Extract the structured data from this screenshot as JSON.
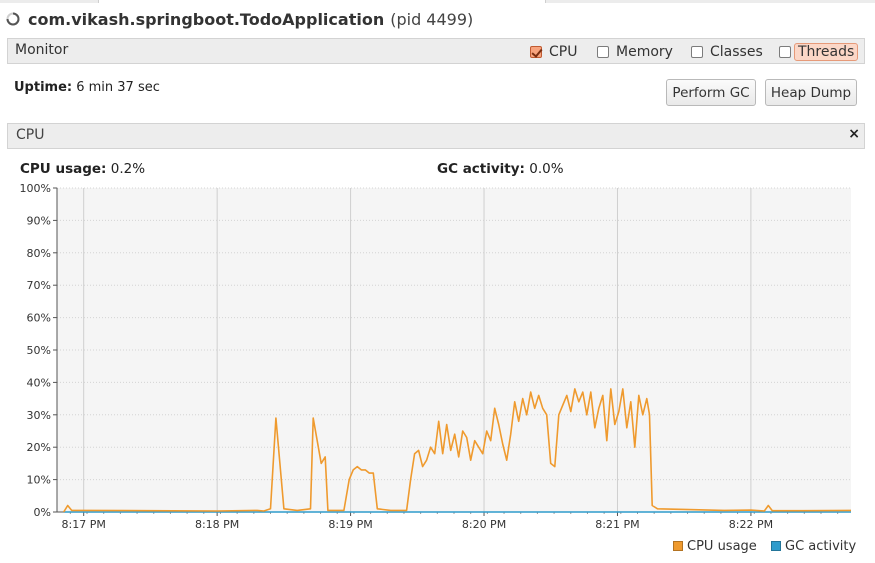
{
  "header": {
    "app_name": "com.vikash.springboot.TodoApplication",
    "pid_text": "(pid 4499)"
  },
  "monitor": {
    "label": "Monitor",
    "checkboxes": [
      {
        "label": "CPU",
        "checked": true
      },
      {
        "label": "Memory",
        "checked": false
      },
      {
        "label": "Classes",
        "checked": false
      },
      {
        "label": "Threads",
        "checked": false
      }
    ],
    "uptime_label": "Uptime:",
    "uptime_value": "6 min 37 sec",
    "perform_gc": "Perform GC",
    "heap_dump": "Heap Dump"
  },
  "cpu_panel": {
    "title": "CPU",
    "close": "×",
    "cpu_usage_label": "CPU usage:",
    "cpu_usage_value": "0.2%",
    "gc_activity_label": "GC activity:",
    "gc_activity_value": "0.0%"
  },
  "colors": {
    "cpu": "#ef9a2e",
    "gc": "#2f9ccc",
    "accent": "#f7a37d"
  },
  "chart_data": {
    "type": "line",
    "ylim": [
      0,
      100
    ],
    "yticks": [
      "0%",
      "10%",
      "20%",
      "30%",
      "40%",
      "50%",
      "60%",
      "70%",
      "80%",
      "90%",
      "100%"
    ],
    "xticks": [
      "8:17 PM",
      "8:18 PM",
      "8:19 PM",
      "8:20 PM",
      "8:21 PM",
      "8:22 PM"
    ],
    "x_unit": "minutes after 8:17 PM",
    "series": [
      {
        "name": "CPU usage",
        "color": "#ef9a2e",
        "points": [
          [
            -0.15,
            0
          ],
          [
            -0.12,
            2
          ],
          [
            -0.09,
            0.5
          ],
          [
            0,
            0.5
          ],
          [
            0.5,
            0.4
          ],
          [
            1,
            0.3
          ],
          [
            1.3,
            0.5
          ],
          [
            1.35,
            0.3
          ],
          [
            1.4,
            1
          ],
          [
            1.44,
            29
          ],
          [
            1.47,
            15
          ],
          [
            1.5,
            1
          ],
          [
            1.6,
            0.5
          ],
          [
            1.7,
            1
          ],
          [
            1.72,
            29
          ],
          [
            1.75,
            22
          ],
          [
            1.78,
            15
          ],
          [
            1.81,
            17
          ],
          [
            1.83,
            0.5
          ],
          [
            1.95,
            0.5
          ],
          [
            1.99,
            10
          ],
          [
            2.02,
            13
          ],
          [
            2.05,
            14
          ],
          [
            2.08,
            13
          ],
          [
            2.11,
            13
          ],
          [
            2.14,
            12
          ],
          [
            2.17,
            12
          ],
          [
            2.2,
            1
          ],
          [
            2.3,
            0.5
          ],
          [
            2.42,
            0.5
          ],
          [
            2.45,
            10
          ],
          [
            2.48,
            18
          ],
          [
            2.51,
            19
          ],
          [
            2.54,
            14
          ],
          [
            2.57,
            16
          ],
          [
            2.6,
            20
          ],
          [
            2.63,
            18
          ],
          [
            2.66,
            28
          ],
          [
            2.69,
            18
          ],
          [
            2.72,
            27
          ],
          [
            2.75,
            19
          ],
          [
            2.78,
            24
          ],
          [
            2.81,
            17
          ],
          [
            2.84,
            25
          ],
          [
            2.87,
            23
          ],
          [
            2.9,
            16
          ],
          [
            2.93,
            22
          ],
          [
            2.96,
            20
          ],
          [
            2.99,
            18
          ],
          [
            3.02,
            25
          ],
          [
            3.05,
            22
          ],
          [
            3.08,
            32
          ],
          [
            3.11,
            27
          ],
          [
            3.14,
            21
          ],
          [
            3.17,
            16
          ],
          [
            3.2,
            24
          ],
          [
            3.23,
            34
          ],
          [
            3.26,
            28
          ],
          [
            3.29,
            35
          ],
          [
            3.32,
            30
          ],
          [
            3.35,
            37
          ],
          [
            3.38,
            32
          ],
          [
            3.41,
            36
          ],
          [
            3.44,
            32
          ],
          [
            3.47,
            30
          ],
          [
            3.5,
            15
          ],
          [
            3.53,
            14
          ],
          [
            3.56,
            30
          ],
          [
            3.59,
            33
          ],
          [
            3.62,
            36
          ],
          [
            3.65,
            31
          ],
          [
            3.68,
            38
          ],
          [
            3.71,
            34
          ],
          [
            3.74,
            37
          ],
          [
            3.77,
            30
          ],
          [
            3.8,
            37
          ],
          [
            3.83,
            26
          ],
          [
            3.86,
            32
          ],
          [
            3.89,
            36
          ],
          [
            3.92,
            22
          ],
          [
            3.95,
            38
          ],
          [
            3.98,
            27
          ],
          [
            4.01,
            31
          ],
          [
            4.04,
            38
          ],
          [
            4.07,
            26
          ],
          [
            4.1,
            34
          ],
          [
            4.13,
            20
          ],
          [
            4.16,
            36
          ],
          [
            4.19,
            30
          ],
          [
            4.22,
            35
          ],
          [
            4.24,
            30
          ],
          [
            4.26,
            2
          ],
          [
            4.3,
            1
          ],
          [
            4.5,
            0.8
          ],
          [
            4.8,
            0.5
          ],
          [
            5.0,
            0.6
          ],
          [
            5.1,
            0.3
          ],
          [
            5.13,
            2
          ],
          [
            5.16,
            0.4
          ],
          [
            5.4,
            0.4
          ],
          [
            5.75,
            0.5
          ]
        ]
      },
      {
        "name": "GC activity",
        "color": "#2f9ccc",
        "points": [
          [
            -0.15,
            0
          ],
          [
            5.75,
            0
          ]
        ]
      }
    ]
  }
}
